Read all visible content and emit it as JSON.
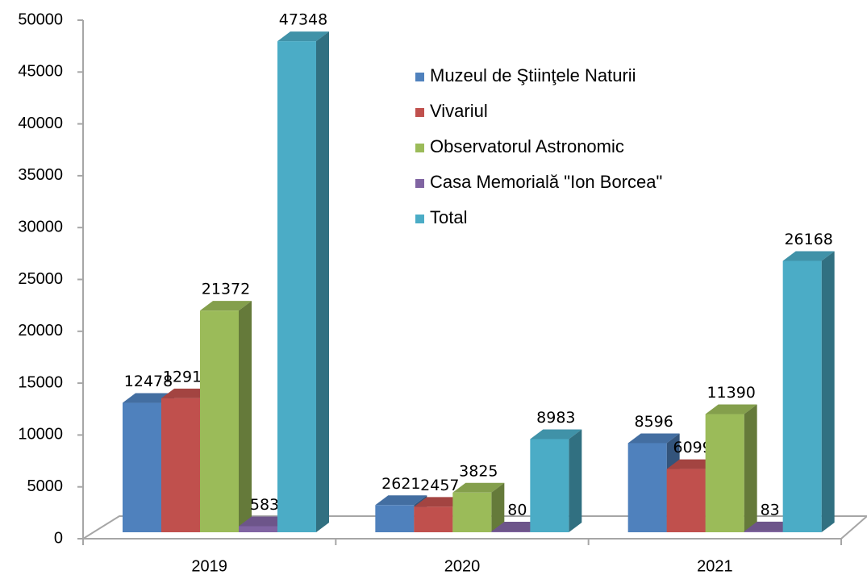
{
  "chart_data": {
    "type": "bar3d",
    "categories": [
      "2019",
      "2020",
      "2021"
    ],
    "series": [
      {
        "name": "Muzeul de Ştiinţele Naturii",
        "color": "#4f81bd",
        "values": [
          12478,
          2621,
          8596
        ]
      },
      {
        "name": "Vivariul",
        "color": "#c0504d",
        "values": [
          12915,
          2457,
          6099
        ]
      },
      {
        "name": "Observatorul Astronomic",
        "color": "#9bbb59",
        "values": [
          21372,
          3825,
          11390
        ]
      },
      {
        "name": "Casa Memorială \"Ion Borcea\"",
        "color": "#8064a2",
        "values": [
          583,
          80,
          83
        ]
      },
      {
        "name": "Total",
        "color": "#4bacc6",
        "values": [
          47348,
          8983,
          26168
        ]
      }
    ],
    "ylim": [
      0,
      50000
    ],
    "yticks": [
      0,
      5000,
      10000,
      15000,
      20000,
      25000,
      30000,
      35000,
      40000,
      45000,
      50000
    ],
    "legend": "upper center"
  }
}
